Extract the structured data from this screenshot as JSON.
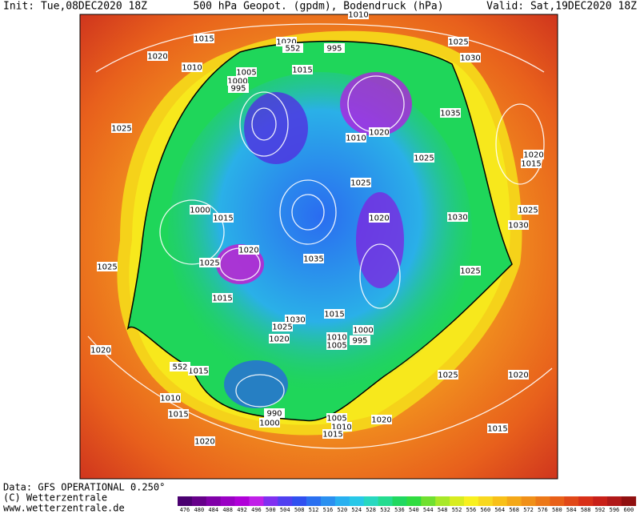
{
  "header": {
    "init": "Init: Tue,08DEC2020 18Z",
    "title": "500 hPa Geopot. (gpdm), Bodendruck (hPa)",
    "valid": "Valid: Sat,19DEC2020 18Z"
  },
  "footer": {
    "data": "Data: GFS OPERATIONAL 0.250°",
    "copyright": "(C) Wetterzentrale",
    "url": "www.wetterzentrale.de"
  },
  "colorbar": {
    "labels": [
      "476",
      "480",
      "484",
      "488",
      "492",
      "496",
      "500",
      "504",
      "508",
      "512",
      "516",
      "520",
      "524",
      "528",
      "532",
      "536",
      "540",
      "544",
      "548",
      "552",
      "556",
      "560",
      "564",
      "568",
      "572",
      "576",
      "580",
      "584",
      "588",
      "592",
      "596",
      "600"
    ]
  },
  "map": {
    "isobar_labels": [
      "1020",
      "1015",
      "1010",
      "1005",
      "1000",
      "995",
      "1020",
      "995",
      "1015",
      "1010",
      "1025",
      "1030",
      "1035",
      "1020",
      "1010",
      "1025",
      "1025",
      "1025",
      "1020",
      "1015",
      "1025",
      "1030",
      "1030",
      "1020",
      "1000",
      "1015",
      "1025",
      "1025",
      "1020",
      "1035",
      "1025",
      "1015",
      "1015",
      "1030",
      "1025",
      "1020",
      "1010",
      "1005",
      "1000",
      "995",
      "1020",
      "1015",
      "1010",
      "1015",
      "1025",
      "1020",
      "1005",
      "1010",
      "1015",
      "1020",
      "1000",
      "990",
      "1015",
      "1020",
      "552",
      "552"
    ]
  }
}
